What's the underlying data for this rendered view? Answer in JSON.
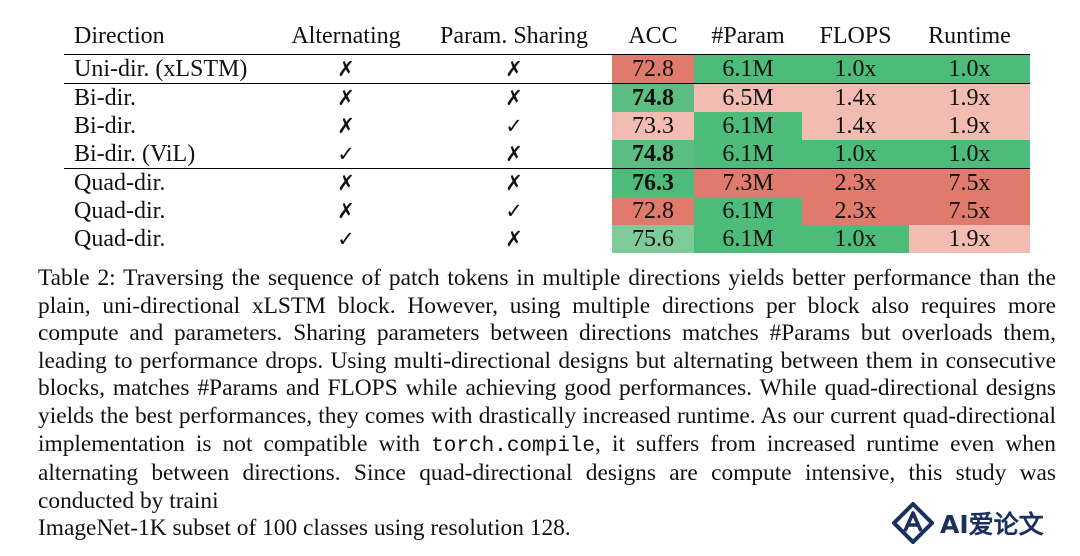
{
  "table": {
    "headers": [
      "Direction",
      "Alternating",
      "Param. Sharing",
      "ACC",
      "#Param",
      "FLOPS",
      "Runtime"
    ],
    "rows": [
      {
        "direction": "Uni-dir. (xLSTM)",
        "alternating": "✗",
        "param_sharing": "✗",
        "acc": "72.8",
        "acc_bold": false,
        "param": "6.1M",
        "flops": "1.0x",
        "runtime": "1.0x",
        "colors": {
          "acc": "#e07a6c",
          "param": "#4dbb7a",
          "flops": "#4dbb7a",
          "runtime": "#4dbb7a"
        },
        "sep_after": true
      },
      {
        "direction": "Bi-dir.",
        "alternating": "✗",
        "param_sharing": "✗",
        "acc": "74.8",
        "acc_bold": true,
        "param": "6.5M",
        "flops": "1.4x",
        "runtime": "1.9x",
        "colors": {
          "acc": "#5cbd82",
          "param": "#f2bcb2",
          "flops": "#f2bcb2",
          "runtime": "#f2bcb2"
        },
        "sep_after": false
      },
      {
        "direction": "Bi-dir.",
        "alternating": "✗",
        "param_sharing": "✓",
        "acc": "73.3",
        "acc_bold": false,
        "param": "6.1M",
        "flops": "1.4x",
        "runtime": "1.9x",
        "colors": {
          "acc": "#f2bcb2",
          "param": "#4dbb7a",
          "flops": "#f2bcb2",
          "runtime": "#f2bcb2"
        },
        "sep_after": false
      },
      {
        "direction": "Bi-dir. (ViL)",
        "alternating": "✓",
        "param_sharing": "✗",
        "acc": "74.8",
        "acc_bold": true,
        "param": "6.1M",
        "flops": "1.0x",
        "runtime": "1.0x",
        "colors": {
          "acc": "#5cbd82",
          "param": "#4dbb7a",
          "flops": "#4dbb7a",
          "runtime": "#4dbb7a"
        },
        "sep_after": true
      },
      {
        "direction": "Quad-dir.",
        "alternating": "✗",
        "param_sharing": "✗",
        "acc": "76.3",
        "acc_bold": true,
        "param": "7.3M",
        "flops": "2.3x",
        "runtime": "7.5x",
        "colors": {
          "acc": "#4dbb7a",
          "param": "#e07a6c",
          "flops": "#e07a6c",
          "runtime": "#e07a6c"
        },
        "sep_after": false
      },
      {
        "direction": "Quad-dir.",
        "alternating": "✗",
        "param_sharing": "✓",
        "acc": "72.8",
        "acc_bold": false,
        "param": "6.1M",
        "flops": "2.3x",
        "runtime": "7.5x",
        "colors": {
          "acc": "#e07a6c",
          "param": "#4dbb7a",
          "flops": "#e07a6c",
          "runtime": "#e07a6c"
        },
        "sep_after": false
      },
      {
        "direction": "Quad-dir.",
        "alternating": "✓",
        "param_sharing": "✗",
        "acc": "75.6",
        "acc_bold": false,
        "param": "6.1M",
        "flops": "1.0x",
        "runtime": "1.9x",
        "colors": {
          "acc": "#7ccb98",
          "param": "#4dbb7a",
          "flops": "#4dbb7a",
          "runtime": "#f2bcb2"
        },
        "sep_after": false
      }
    ]
  },
  "caption": {
    "part1": "Table 2: Traversing the sequence of patch tokens in multiple directions yields better performance than the plain, uni-directional xLSTM block. However, using multiple directions per block also requires more compute and parameters. Sharing parameters between directions matches #Params but overloads them, leading to performance drops. Using multi-directional designs but alternating between them in consecutive blocks, matches #Params and FLOPS while achieving good performances. While quad-directional designs yields the best performances, they comes with drastically increased runtime. As our current quad-directional implementation is not compatible with ",
    "code": "torch.compile",
    "part2": ", it suffers from increased runtime even when alternating between directions. Since quad-directional designs are compute intensive, this study was conducted by traini",
    "part3": "ImageNet-1K subset of 100 classes using resolution 128."
  },
  "watermark": {
    "text": "AI爱论文",
    "icon": "diamond-a-logo"
  }
}
